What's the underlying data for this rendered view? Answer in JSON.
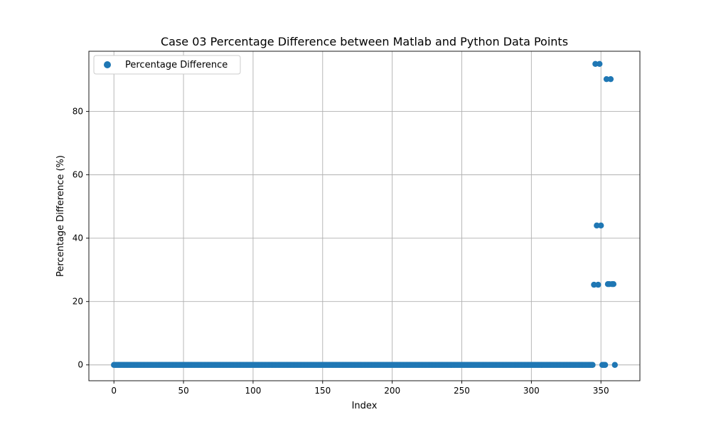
{
  "chart_data": {
    "type": "scatter",
    "title": "Case 03 Percentage Difference between Matlab and Python Data Points",
    "xlabel": "Index",
    "ylabel": "Percentage Difference (%)",
    "xlim": [
      -18,
      378
    ],
    "ylim": [
      -5,
      99
    ],
    "x_ticks": [
      0,
      50,
      100,
      150,
      200,
      250,
      300,
      350
    ],
    "y_ticks": [
      0,
      20,
      40,
      60,
      80
    ],
    "grid": true,
    "legend": {
      "position": "upper-left",
      "entries": [
        "Percentage Difference"
      ]
    },
    "series": [
      {
        "name": "Percentage Difference",
        "color": "#1f77b4",
        "marker": "circle",
        "zero_range": [
          0,
          344
        ],
        "points": [
          {
            "x": 345,
            "y": 25.3
          },
          {
            "x": 346,
            "y": 95.0
          },
          {
            "x": 347,
            "y": 44.0
          },
          {
            "x": 348,
            "y": 25.3
          },
          {
            "x": 349,
            "y": 95.0
          },
          {
            "x": 350,
            "y": 44.0
          },
          {
            "x": 351,
            "y": 0
          },
          {
            "x": 352,
            "y": 0
          },
          {
            "x": 353,
            "y": 0
          },
          {
            "x": 354,
            "y": 90.2
          },
          {
            "x": 355,
            "y": 25.5
          },
          {
            "x": 356,
            "y": 25.5
          },
          {
            "x": 357,
            "y": 90.2
          },
          {
            "x": 358,
            "y": 25.5
          },
          {
            "x": 359,
            "y": 25.5
          },
          {
            "x": 360,
            "y": 0
          }
        ]
      }
    ]
  }
}
